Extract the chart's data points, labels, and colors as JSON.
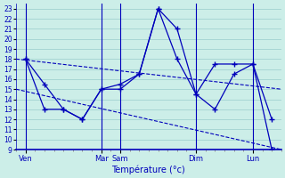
{
  "xlabel": "Température (°c)",
  "bg_color": "#cceee8",
  "line_color": "#0000bb",
  "grid_color": "#99cccc",
  "ylim": [
    9,
    23.5
  ],
  "yticks": [
    9,
    10,
    11,
    12,
    13,
    14,
    15,
    16,
    17,
    18,
    19,
    20,
    21,
    22,
    23
  ],
  "xlim": [
    0,
    28
  ],
  "xtick_positions": [
    1,
    9,
    11,
    19,
    25
  ],
  "xtick_labels": [
    "Ven",
    "Mar",
    "Sam",
    "Dim",
    "Lun"
  ],
  "vline_positions": [
    1,
    9,
    11,
    19,
    25
  ],
  "line1": {
    "x": [
      0,
      28
    ],
    "y": [
      18.0,
      15.0
    ],
    "style": "--"
  },
  "line2": {
    "x": [
      0,
      28
    ],
    "y": [
      15.0,
      9.0
    ],
    "style": "--"
  },
  "line3_x": [
    1,
    3,
    5,
    7,
    9,
    11,
    13,
    15,
    17,
    19,
    21,
    23,
    25,
    27
  ],
  "line3_y": [
    18.0,
    15.5,
    13.0,
    12.0,
    15.0,
    15.0,
    16.5,
    23.0,
    21.0,
    14.5,
    17.5,
    17.5,
    17.5,
    12.0
  ],
  "line4_x": [
    1,
    3,
    5,
    7,
    9,
    11,
    13,
    15,
    17,
    19,
    21,
    23,
    25,
    27
  ],
  "line4_y": [
    18.0,
    13.0,
    13.0,
    12.0,
    15.0,
    15.5,
    16.5,
    23.0,
    18.0,
    14.5,
    13.0,
    16.5,
    17.5,
    9.0
  ]
}
